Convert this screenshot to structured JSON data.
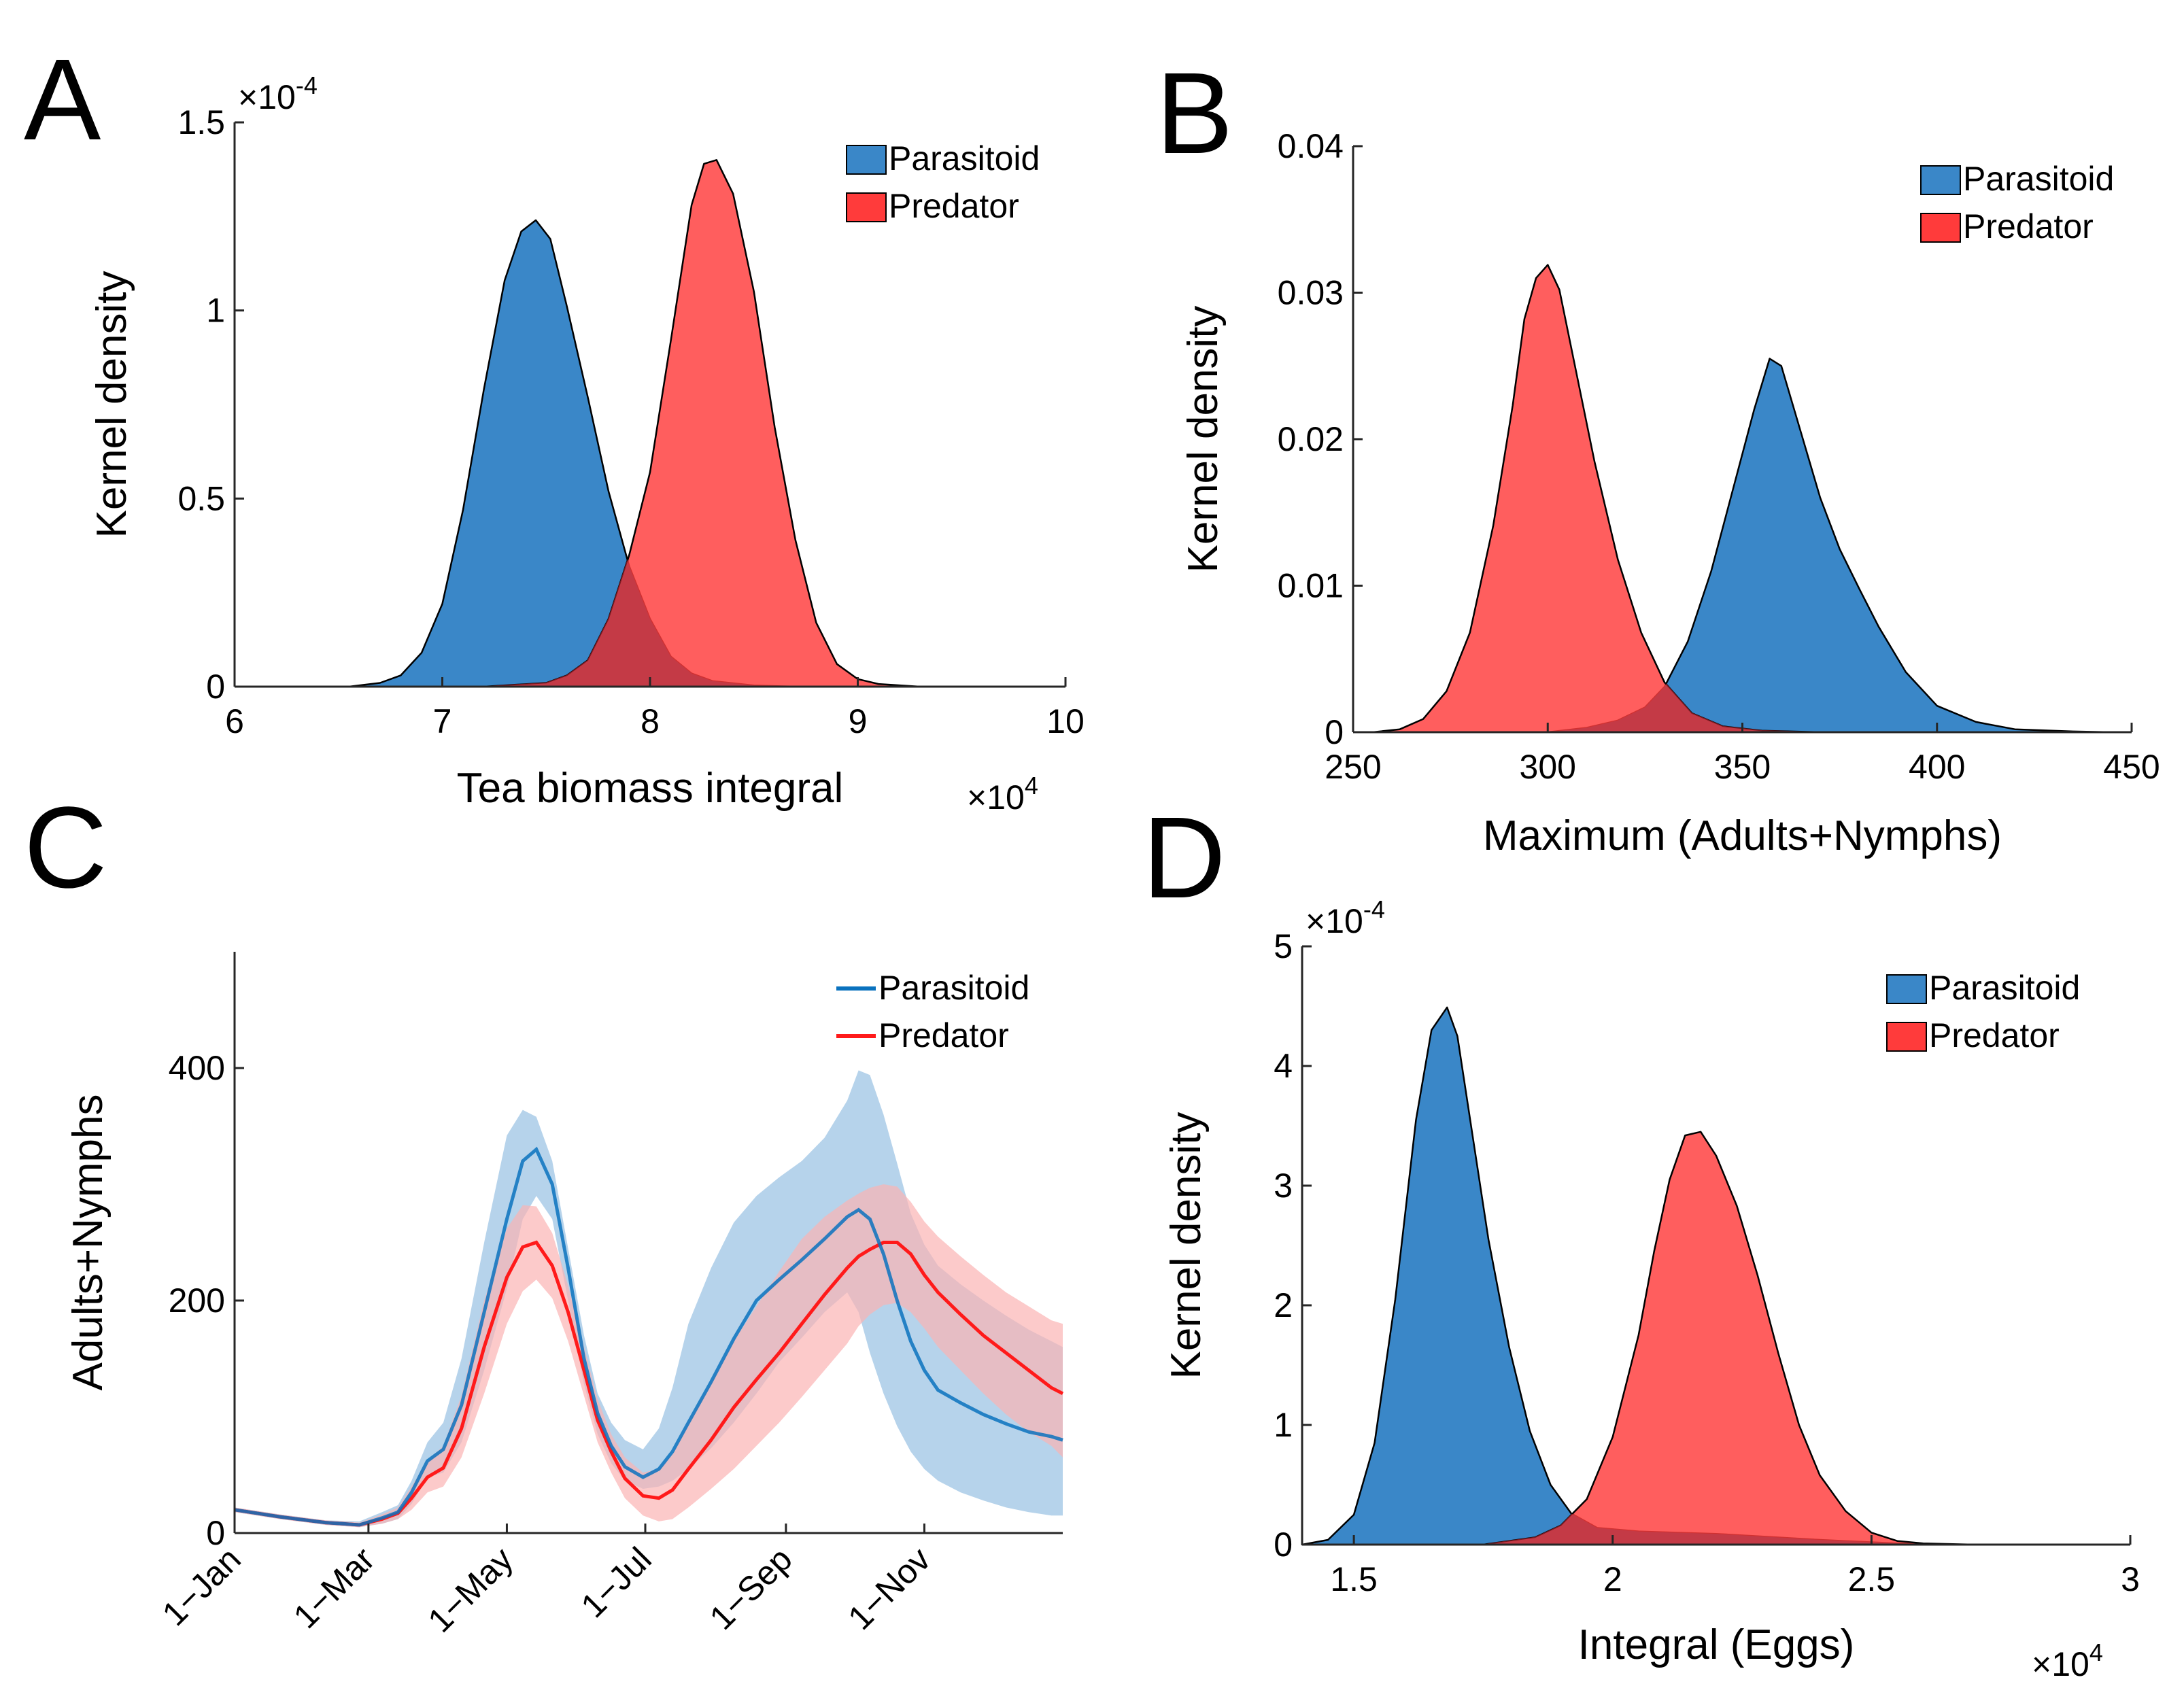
{
  "figure": {
    "colors": {
      "parasitoid": "#3a87c8",
      "predator": "#ff3b3b",
      "parasitoid_line": "#0a72be",
      "predator_line": "#ff1a1a",
      "parasitoid_band": "#a9cbe8",
      "predator_band": "#fbb4b4",
      "overlap": "#c43a46",
      "axis": "#262626"
    }
  },
  "chart_data": [
    {
      "panel": "A",
      "type": "area",
      "title": "",
      "xlabel": "Tea biomass integral",
      "ylabel": "Kernel density",
      "xlim": [
        60000,
        100000
      ],
      "ylim": [
        0,
        0.00015
      ],
      "x_ticks": [
        60000,
        70000,
        80000,
        90000,
        100000
      ],
      "x_tick_labels": [
        "6",
        "7",
        "8",
        "9",
        "10"
      ],
      "y_ticks": [
        0,
        5e-05,
        0.0001,
        0.00015
      ],
      "y_tick_labels": [
        "0",
        "0.5",
        "1",
        "1.5"
      ],
      "x_exponent": {
        "base": "×10",
        "power": "4"
      },
      "y_exponent": {
        "base": "×10",
        "power": "-4"
      },
      "legend": [
        "Parasitoid",
        "Predator"
      ],
      "legend_position": "top-right",
      "series": [
        {
          "name": "Parasitoid",
          "x": [
            65500,
            67000,
            68000,
            69000,
            70000,
            71000,
            72000,
            73000,
            73800,
            74500,
            75200,
            76000,
            77000,
            78000,
            79000,
            80000,
            81000,
            82000,
            83000,
            85000,
            87000
          ],
          "y": [
            0,
            1e-06,
            3e-06,
            9e-06,
            2.2e-05,
            4.7e-05,
            7.9e-05,
            0.000108,
            0.000121,
            0.000124,
            0.000119,
            0.000101,
            7.7e-05,
            5.2e-05,
            3.2e-05,
            1.8e-05,
            8e-06,
            3.5e-06,
            1.5e-06,
            3e-07,
            0
          ]
        },
        {
          "name": "Predator",
          "x": [
            72000,
            75000,
            76000,
            77000,
            78000,
            79000,
            80000,
            81000,
            82000,
            82600,
            83200,
            84000,
            85000,
            86000,
            87000,
            88000,
            89000,
            90000,
            91000,
            93000
          ],
          "y": [
            0,
            1e-06,
            3e-06,
            7e-06,
            1.8e-05,
            3.5e-05,
            5.7e-05,
            9.2e-05,
            0.000128,
            0.000139,
            0.00014,
            0.000131,
            0.000105,
            6.9e-05,
            3.9e-05,
            1.7e-05,
            6e-06,
            2e-06,
            7e-07,
            0
          ]
        }
      ]
    },
    {
      "panel": "B",
      "type": "area",
      "title": "",
      "xlabel": "Maximum (Adults+Nymphs)",
      "ylabel": "Kernel density",
      "xlim": [
        250,
        450
      ],
      "ylim": [
        0,
        0.04
      ],
      "x_ticks": [
        250,
        300,
        350,
        400,
        450
      ],
      "x_tick_labels": [
        "250",
        "300",
        "350",
        "400",
        "450"
      ],
      "y_ticks": [
        0,
        0.01,
        0.02,
        0.03,
        0.04
      ],
      "y_tick_labels": [
        "0",
        "0.01",
        "0.02",
        "0.03",
        "0.04"
      ],
      "legend": [
        "Parasitoid",
        "Predator"
      ],
      "legend_position": "top-right",
      "series": [
        {
          "name": "Parasitoid",
          "x": [
            300,
            310,
            318,
            325,
            330,
            336,
            342,
            348,
            353,
            357,
            360,
            365,
            370,
            375,
            380,
            385,
            392,
            400,
            410,
            420,
            435,
            445
          ],
          "y": [
            0,
            0.0003,
            0.0008,
            0.0017,
            0.0031,
            0.0062,
            0.011,
            0.017,
            0.022,
            0.0255,
            0.025,
            0.0205,
            0.016,
            0.0125,
            0.0098,
            0.0072,
            0.0041,
            0.0018,
            0.0007,
            0.0002,
            5e-05,
            0
          ]
        },
        {
          "name": "Predator",
          "x": [
            255,
            262,
            268,
            274,
            280,
            286,
            291,
            294,
            297,
            300,
            303,
            307,
            312,
            318,
            324,
            330,
            337,
            345,
            355,
            370
          ],
          "y": [
            0,
            0.0002,
            0.0009,
            0.0028,
            0.0068,
            0.0141,
            0.0223,
            0.0282,
            0.031,
            0.0319,
            0.0302,
            0.025,
            0.0185,
            0.0118,
            0.0068,
            0.0034,
            0.0013,
            0.0004,
            0.0001,
            0
          ]
        }
      ]
    },
    {
      "panel": "C",
      "type": "line",
      "title": "",
      "xlabel": "",
      "ylabel": "Adults+Nymphs",
      "xlim": [
        0,
        365
      ],
      "ylim": [
        0,
        500
      ],
      "x_ticks": [
        0,
        59,
        120,
        181,
        243,
        304
      ],
      "x_tick_labels": [
        "1−Jan",
        "1−Mar",
        "1−May",
        "1−Jul",
        "1−Sep",
        "1−Nov"
      ],
      "y_ticks": [
        0,
        200,
        400
      ],
      "y_tick_labels": [
        "0",
        "200",
        "400"
      ],
      "legend": [
        "Parasitoid",
        "Predator"
      ],
      "legend_position": "top-right",
      "x": [
        0,
        20,
        40,
        55,
        65,
        72,
        78,
        85,
        92,
        100,
        110,
        120,
        127,
        133,
        140,
        147,
        154,
        160,
        166,
        172,
        180,
        187,
        193,
        200,
        210,
        220,
        230,
        240,
        250,
        260,
        270,
        275,
        280,
        286,
        292,
        298,
        304,
        310,
        320,
        330,
        340,
        350,
        360,
        365
      ],
      "series": [
        {
          "name": "Parasitoid",
          "mean": [
            20,
            14,
            9,
            7,
            13,
            18,
            35,
            62,
            72,
            110,
            190,
            270,
            320,
            330,
            300,
            228,
            150,
            103,
            75,
            57,
            48,
            55,
            70,
            95,
            130,
            167,
            200,
            218,
            235,
            253,
            272,
            278,
            270,
            240,
            200,
            165,
            140,
            123,
            112,
            102,
            94,
            87,
            83,
            80
          ],
          "upper": [
            22,
            16,
            11,
            10,
            18,
            24,
            45,
            78,
            95,
            150,
            250,
            342,
            364,
            358,
            320,
            245,
            170,
            120,
            95,
            80,
            72,
            90,
            125,
            180,
            228,
            267,
            290,
            306,
            320,
            340,
            372,
            398,
            394,
            360,
            318,
            275,
            248,
            230,
            214,
            200,
            187,
            175,
            165,
            160
          ],
          "lower": [
            18,
            12,
            7,
            5,
            8,
            12,
            25,
            48,
            52,
            78,
            140,
            210,
            270,
            290,
            270,
            200,
            128,
            85,
            60,
            45,
            38,
            40,
            45,
            55,
            73,
            95,
            120,
            147,
            168,
            190,
            207,
            190,
            155,
            120,
            92,
            70,
            55,
            45,
            35,
            28,
            22,
            18,
            15,
            15
          ]
        },
        {
          "name": "Predator",
          "mean": [
            20,
            14,
            9,
            7,
            12,
            17,
            30,
            48,
            56,
            90,
            160,
            220,
            246,
            250,
            230,
            190,
            140,
            97,
            70,
            47,
            32,
            30,
            37,
            55,
            80,
            108,
            132,
            155,
            180,
            205,
            228,
            238,
            244,
            250,
            250,
            240,
            222,
            207,
            188,
            170,
            155,
            140,
            125,
            120
          ],
          "upper": [
            22,
            16,
            11,
            9,
            16,
            22,
            40,
            62,
            75,
            118,
            200,
            262,
            282,
            281,
            258,
            213,
            160,
            115,
            85,
            65,
            52,
            55,
            68,
            95,
            130,
            165,
            195,
            225,
            253,
            272,
            286,
            292,
            297,
            300,
            298,
            285,
            268,
            255,
            238,
            222,
            207,
            195,
            183,
            180
          ],
          "lower": [
            18,
            12,
            7,
            5,
            8,
            12,
            20,
            35,
            40,
            65,
            120,
            180,
            208,
            218,
            202,
            165,
            118,
            78,
            52,
            30,
            15,
            10,
            12,
            22,
            38,
            55,
            75,
            95,
            117,
            140,
            163,
            178,
            188,
            196,
            198,
            190,
            176,
            160,
            140,
            120,
            102,
            87,
            75,
            65
          ]
        }
      ]
    },
    {
      "panel": "D",
      "type": "area",
      "title": "",
      "xlabel": "Integral (Eggs)",
      "ylabel": "Kernel density",
      "xlim": [
        14000,
        30000
      ],
      "ylim": [
        0,
        0.0005
      ],
      "x_ticks": [
        15000,
        20000,
        25000,
        30000
      ],
      "x_tick_labels": [
        "1.5",
        "2",
        "2.5",
        "3"
      ],
      "y_ticks": [
        0,
        0.0001,
        0.0002,
        0.0003,
        0.0004,
        0.0005
      ],
      "y_tick_labels": [
        "0",
        "1",
        "2",
        "3",
        "4",
        "5"
      ],
      "x_exponent": {
        "base": "×10",
        "power": "4"
      },
      "y_exponent": {
        "base": "×10",
        "power": "-4"
      },
      "legend": [
        "Parasitoid",
        "Predator"
      ],
      "legend_position": "top-right",
      "series": [
        {
          "name": "Parasitoid",
          "x": [
            14000,
            14500,
            15000,
            15400,
            15800,
            16200,
            16500,
            16800,
            17000,
            17300,
            17600,
            18000,
            18400,
            18800,
            19200,
            19700,
            20500,
            22000,
            24000,
            26000
          ],
          "y": [
            0,
            4e-06,
            2.5e-05,
            8.5e-05,
            0.000205,
            0.000355,
            0.00043,
            0.000449,
            0.000425,
            0.00034,
            0.000255,
            0.000165,
            9.5e-05,
            5e-05,
            2.6e-05,
            1.4e-05,
            1.1e-05,
            9e-06,
            4e-06,
            0
          ]
        },
        {
          "name": "Predator",
          "x": [
            17500,
            18500,
            19000,
            19500,
            20000,
            20500,
            20800,
            21100,
            21400,
            21700,
            22000,
            22400,
            22800,
            23200,
            23600,
            24000,
            24500,
            25000,
            25500,
            26000,
            27000
          ],
          "y": [
            0,
            6e-06,
            1.6e-05,
            3.8e-05,
            9e-05,
            0.000175,
            0.000245,
            0.000305,
            0.000342,
            0.000345,
            0.000325,
            0.000283,
            0.000225,
            0.00016,
            0.0001,
            5.8e-05,
            2.8e-05,
            1e-05,
            3e-06,
            1e-06,
            0
          ]
        }
      ]
    }
  ]
}
